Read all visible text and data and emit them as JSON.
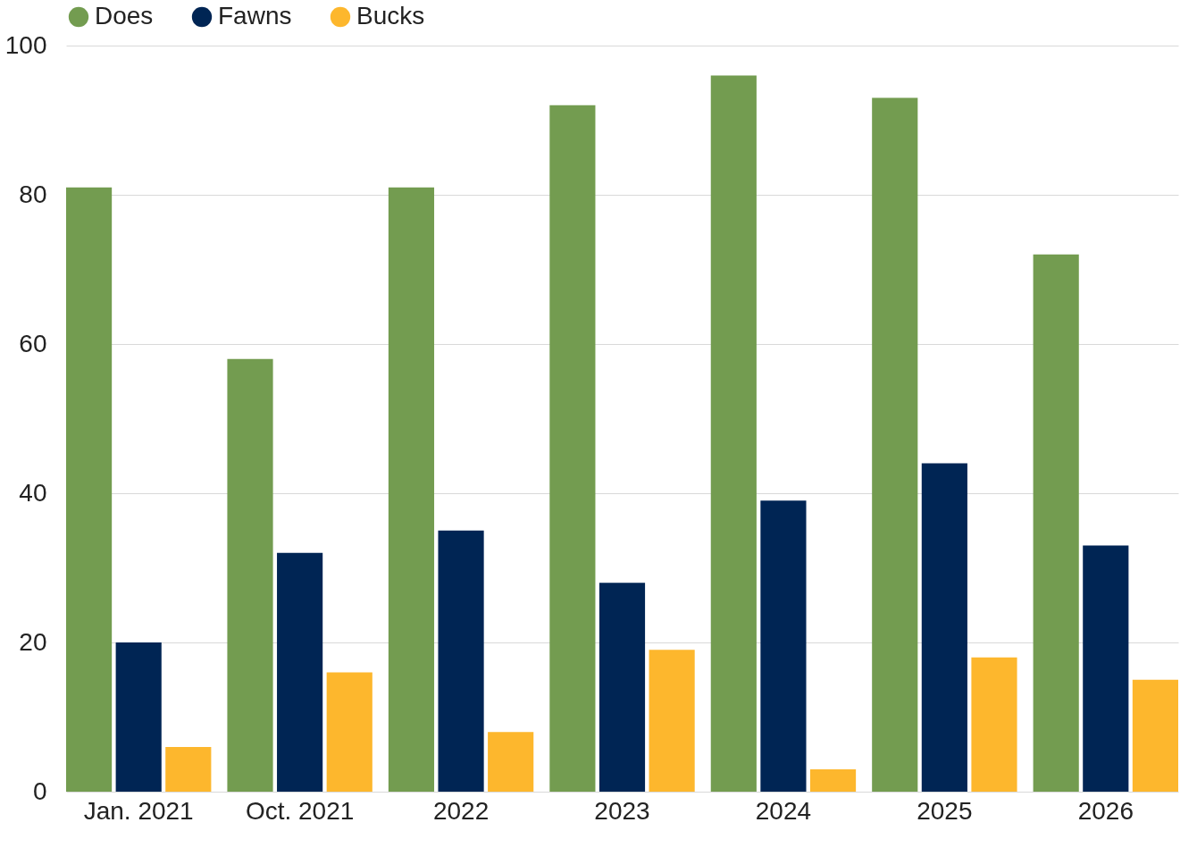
{
  "chart_data": {
    "type": "bar",
    "categories": [
      "Jan. 2021",
      "Oct. 2021",
      "2022",
      "2023",
      "2024",
      "2025",
      "2026"
    ],
    "series": [
      {
        "name": "Does",
        "color": "#739c50",
        "values": [
          81,
          58,
          81,
          92,
          96,
          93,
          72
        ]
      },
      {
        "name": "Fawns",
        "color": "#002554",
        "values": [
          20,
          32,
          35,
          28,
          39,
          44,
          33
        ]
      },
      {
        "name": "Bucks",
        "color": "#fdb72d",
        "values": [
          6,
          16,
          8,
          19,
          3,
          18,
          15
        ]
      }
    ],
    "ylim": [
      0,
      100
    ],
    "yticks": [
      0,
      20,
      40,
      60,
      80,
      100
    ],
    "grid": "y",
    "legend": "top"
  }
}
